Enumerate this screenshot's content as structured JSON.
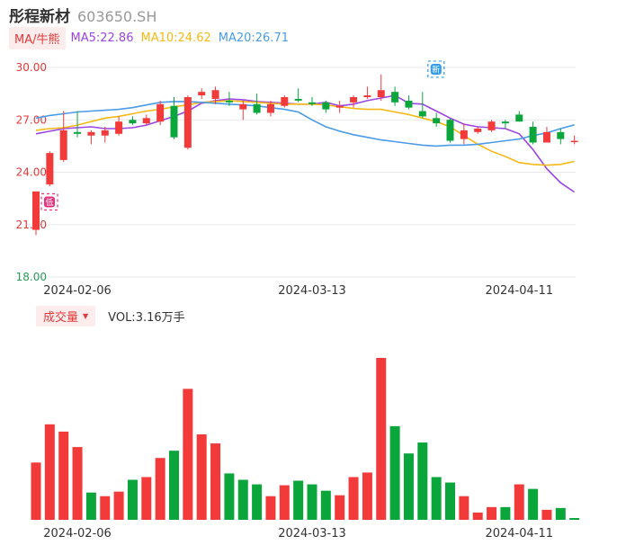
{
  "header": {
    "stock_name": "彤程新材",
    "stock_code": "603650.SH"
  },
  "ma_legend": {
    "toggle_label": "MA/牛熊",
    "items": [
      {
        "label": "MA5:22.86",
        "color": "#9b45e4"
      },
      {
        "label": "MA10:24.62",
        "color": "#f5b915"
      },
      {
        "label": "MA20:26.71",
        "color": "#4a9be8"
      }
    ]
  },
  "volume_legend": {
    "toggle_label": "成交量",
    "caret": "▼",
    "value_label": "VOL:3.16万手"
  },
  "markers": [
    {
      "text": "低",
      "index": 0,
      "price": 22.3,
      "color": "#e8317b"
    },
    {
      "text": "新",
      "index": 28,
      "price": 29.9,
      "color": "#2e9be8"
    }
  ],
  "colors": {
    "up": "#f23a3a",
    "down": "#0aa63b",
    "grid": "#e9e9e9",
    "price_tick": "#e23a3a",
    "price_tick_low": "#2a9a58"
  },
  "chart_data": [
    {
      "type": "candlestick",
      "y_ticks": [
        "30.00",
        "27.00",
        "24.00",
        "21.00",
        "18.00"
      ],
      "ylim": [
        18,
        30
      ],
      "x_tick_labels": [
        {
          "index": 3,
          "label": "2024-02-06"
        },
        {
          "index": 20,
          "label": "2024-03-13"
        },
        {
          "index": 35,
          "label": "2024-04-11"
        }
      ],
      "candles": [
        {
          "o": 20.7,
          "c": 22.9,
          "h": 22.9,
          "l": 20.4
        },
        {
          "o": 23.3,
          "c": 25.1,
          "h": 25.2,
          "l": 23.2
        },
        {
          "o": 24.7,
          "c": 26.4,
          "h": 27.5,
          "l": 24.6
        },
        {
          "o": 26.3,
          "c": 26.2,
          "h": 27.5,
          "l": 26.0
        },
        {
          "o": 26.1,
          "c": 26.3,
          "h": 26.4,
          "l": 25.6
        },
        {
          "o": 26.1,
          "c": 26.4,
          "h": 26.6,
          "l": 25.7
        },
        {
          "o": 26.2,
          "c": 26.9,
          "h": 27.2,
          "l": 26.1
        },
        {
          "o": 27.0,
          "c": 26.8,
          "h": 27.2,
          "l": 26.7
        },
        {
          "o": 26.8,
          "c": 27.1,
          "h": 27.3,
          "l": 26.7
        },
        {
          "o": 26.9,
          "c": 27.9,
          "h": 28.1,
          "l": 26.7
        },
        {
          "o": 27.8,
          "c": 26.0,
          "h": 28.3,
          "l": 25.9
        },
        {
          "o": 25.4,
          "c": 28.3,
          "h": 28.4,
          "l": 25.3
        },
        {
          "o": 28.4,
          "c": 28.6,
          "h": 28.8,
          "l": 28.2
        },
        {
          "o": 28.2,
          "c": 28.7,
          "h": 28.9,
          "l": 27.9
        },
        {
          "o": 28.1,
          "c": 28.0,
          "h": 28.6,
          "l": 27.8
        },
        {
          "o": 27.6,
          "c": 27.9,
          "h": 28.1,
          "l": 27.0
        },
        {
          "o": 27.9,
          "c": 27.4,
          "h": 28.5,
          "l": 27.3
        },
        {
          "o": 27.4,
          "c": 27.9,
          "h": 28.1,
          "l": 27.2
        },
        {
          "o": 27.8,
          "c": 28.3,
          "h": 28.4,
          "l": 27.7
        },
        {
          "o": 28.2,
          "c": 28.1,
          "h": 28.8,
          "l": 28.0
        },
        {
          "o": 28.0,
          "c": 27.9,
          "h": 28.3,
          "l": 27.8
        },
        {
          "o": 28.0,
          "c": 27.6,
          "h": 28.1,
          "l": 27.4
        },
        {
          "o": 27.7,
          "c": 27.8,
          "h": 28.1,
          "l": 27.4
        },
        {
          "o": 28.0,
          "c": 28.3,
          "h": 28.4,
          "l": 27.7
        },
        {
          "o": 28.3,
          "c": 28.4,
          "h": 28.9,
          "l": 28.2
        },
        {
          "o": 28.3,
          "c": 28.7,
          "h": 29.6,
          "l": 28.1
        },
        {
          "o": 28.6,
          "c": 28.0,
          "h": 28.9,
          "l": 27.8
        },
        {
          "o": 28.1,
          "c": 27.7,
          "h": 28.4,
          "l": 27.6
        },
        {
          "o": 27.5,
          "c": 27.2,
          "h": 28.6,
          "l": 27.1
        },
        {
          "o": 27.1,
          "c": 26.8,
          "h": 27.4,
          "l": 26.6
        },
        {
          "o": 27.0,
          "c": 25.8,
          "h": 27.1,
          "l": 25.7
        },
        {
          "o": 25.9,
          "c": 26.4,
          "h": 26.8,
          "l": 25.6
        },
        {
          "o": 26.3,
          "c": 26.5,
          "h": 26.6,
          "l": 26.2
        },
        {
          "o": 26.4,
          "c": 26.9,
          "h": 27.0,
          "l": 26.3
        },
        {
          "o": 26.9,
          "c": 26.8,
          "h": 27.0,
          "l": 26.5
        },
        {
          "o": 27.3,
          "c": 26.9,
          "h": 27.5,
          "l": 26.9
        },
        {
          "o": 26.6,
          "c": 25.7,
          "h": 26.9,
          "l": 25.6
        },
        {
          "o": 25.7,
          "c": 26.3,
          "h": 26.6,
          "l": 25.7
        },
        {
          "o": 26.3,
          "c": 25.9,
          "h": 26.5,
          "l": 25.6
        },
        {
          "o": 25.8,
          "c": 25.8,
          "h": 26.1,
          "l": 25.6
        }
      ],
      "ma_series": [
        {
          "label": "MA5",
          "color": "#9b45e4",
          "values": [
            26.2,
            26.35,
            26.5,
            26.55,
            26.6,
            26.5,
            26.5,
            26.55,
            26.7,
            26.95,
            27.2,
            27.5,
            27.95,
            28.1,
            28.2,
            28.15,
            28.05,
            28.0,
            27.95,
            27.9,
            27.9,
            28.0,
            27.8,
            27.9,
            28.1,
            28.25,
            28.4,
            27.95,
            27.9,
            27.5,
            27.1,
            26.75,
            26.6,
            26.55,
            26.5,
            26.2,
            25.3,
            24.2,
            23.4,
            22.86
          ]
        },
        {
          "label": "MA10",
          "color": "#f5b915",
          "values": [
            26.4,
            26.5,
            26.55,
            26.7,
            26.9,
            27.1,
            27.2,
            27.35,
            27.5,
            27.6,
            27.75,
            27.85,
            28.0,
            28.05,
            28.1,
            28.05,
            28.0,
            27.95,
            27.9,
            27.9,
            27.9,
            27.85,
            27.75,
            27.65,
            27.6,
            27.6,
            27.45,
            27.3,
            27.1,
            26.9,
            26.6,
            26.1,
            25.6,
            25.2,
            24.9,
            24.55,
            24.45,
            24.4,
            24.45,
            24.62
          ]
        },
        {
          "label": "MA20",
          "color": "#4a9be8",
          "values": [
            27.1,
            27.25,
            27.35,
            27.45,
            27.5,
            27.55,
            27.6,
            27.7,
            27.85,
            28.0,
            28.05,
            28.05,
            28.0,
            27.95,
            27.9,
            27.85,
            27.8,
            27.7,
            27.6,
            27.45,
            27.0,
            26.6,
            26.35,
            26.15,
            26.0,
            25.85,
            25.75,
            25.65,
            25.55,
            25.5,
            25.55,
            25.55,
            25.6,
            25.7,
            25.8,
            25.9,
            26.1,
            26.25,
            26.5,
            26.71
          ]
        }
      ]
    },
    {
      "type": "bar",
      "x_tick_labels": [
        {
          "index": 3,
          "label": "2024-02-06"
        },
        {
          "index": 20,
          "label": "2024-03-13"
        },
        {
          "index": 35,
          "label": "2024-04-11"
        }
      ],
      "volume_values": [
        6.3,
        10.5,
        9.7,
        8.0,
        3.0,
        2.6,
        3.1,
        4.4,
        4.7,
        6.8,
        7.6,
        14.4,
        9.4,
        8.4,
        5.1,
        4.4,
        3.9,
        2.6,
        3.8,
        4.3,
        3.9,
        3.2,
        2.7,
        4.7,
        5.2,
        17.8,
        10.3,
        7.3,
        8.5,
        4.7,
        4.1,
        2.6,
        0.8,
        1.4,
        1.4,
        3.9,
        3.4,
        1.1,
        1.3,
        0.2
      ],
      "volume_up": [
        true,
        true,
        true,
        true,
        false,
        true,
        true,
        false,
        true,
        true,
        false,
        true,
        true,
        true,
        false,
        false,
        false,
        true,
        true,
        false,
        false,
        false,
        true,
        true,
        true,
        true,
        false,
        false,
        false,
        false,
        false,
        true,
        true,
        true,
        false,
        true,
        false,
        true,
        false,
        false
      ]
    }
  ]
}
